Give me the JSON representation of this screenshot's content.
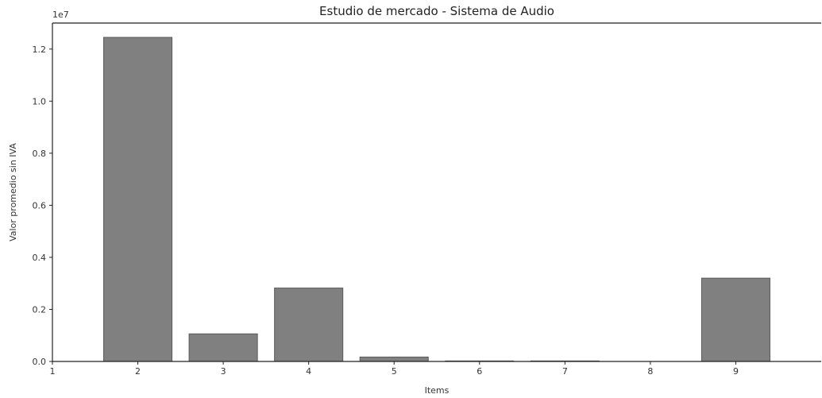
{
  "chart_data": {
    "type": "bar",
    "title": "Estudio de mercado - Sistema de Audio",
    "xlabel": "Items",
    "ylabel": "Valor promedio sin IVA",
    "y_multiplier_label": "1e7",
    "x_ticks": [
      "1",
      "2",
      "3",
      "4",
      "5",
      "6",
      "7",
      "8",
      "9"
    ],
    "y_ticks": [
      "0.0",
      "0.2",
      "0.4",
      "0.6",
      "0.8",
      "1.0",
      "1.2"
    ],
    "categories": [
      "2",
      "3",
      "4",
      "5",
      "6",
      "7",
      "8",
      "9"
    ],
    "values": [
      12450000,
      1060000,
      2820000,
      170000,
      20000,
      20000,
      0,
      3200000
    ],
    "xlim": [
      1,
      10
    ],
    "ylim": [
      0,
      13000000
    ],
    "grid": false,
    "colors": {
      "bar": "#808080",
      "bar_edge": "#5a5a5a",
      "axis": "#222222"
    }
  }
}
